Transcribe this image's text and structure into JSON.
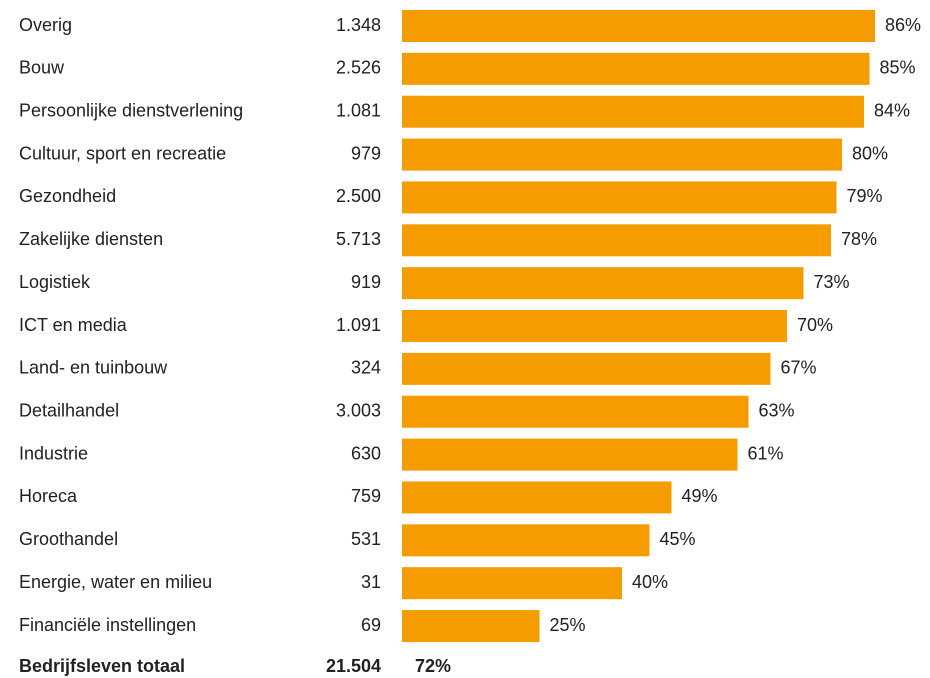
{
  "chart_data": {
    "type": "bar",
    "orientation": "horizontal",
    "color": "#f59c00",
    "categories": [
      "Overig",
      "Bouw",
      "Persoonlijke dienstverlening",
      "Cultuur, sport en recreatie",
      "Gezondheid",
      "Zakelijke diensten",
      "Logistiek",
      "ICT en media",
      "Land- en tuinbouw",
      "Detailhandel",
      "Industrie",
      "Horeca",
      "Groothandel",
      "Energie, water en milieu",
      "Financiële instellingen"
    ],
    "counts": [
      {
        "value": 1348,
        "label": "1.348"
      },
      {
        "value": 2526,
        "label": "2.526"
      },
      {
        "value": 1081,
        "label": "1.081"
      },
      979,
      {
        "value": 2500,
        "label": "2.500"
      },
      {
        "value": 5713,
        "label": "5.713"
      },
      919,
      {
        "value": 1091,
        "label": "1.091"
      },
      324,
      {
        "value": 3003,
        "label": "3.003"
      },
      630,
      759,
      531,
      31,
      69
    ],
    "values": [
      86,
      85,
      84,
      80,
      79,
      78,
      73,
      70,
      67,
      63,
      61,
      49,
      45,
      40,
      25
    ],
    "value_labels": [
      "86%",
      "85%",
      "84%",
      "80%",
      "79%",
      "78%",
      "73%",
      "70%",
      "67%",
      "63%",
      "61%",
      "49%",
      "45%",
      "40%",
      "25%"
    ],
    "total": {
      "name": "Bedrijfsleven totaal",
      "count": {
        "value": 21504,
        "label": "21.504"
      },
      "value": {
        "value": 72,
        "label": "72%"
      }
    }
  }
}
